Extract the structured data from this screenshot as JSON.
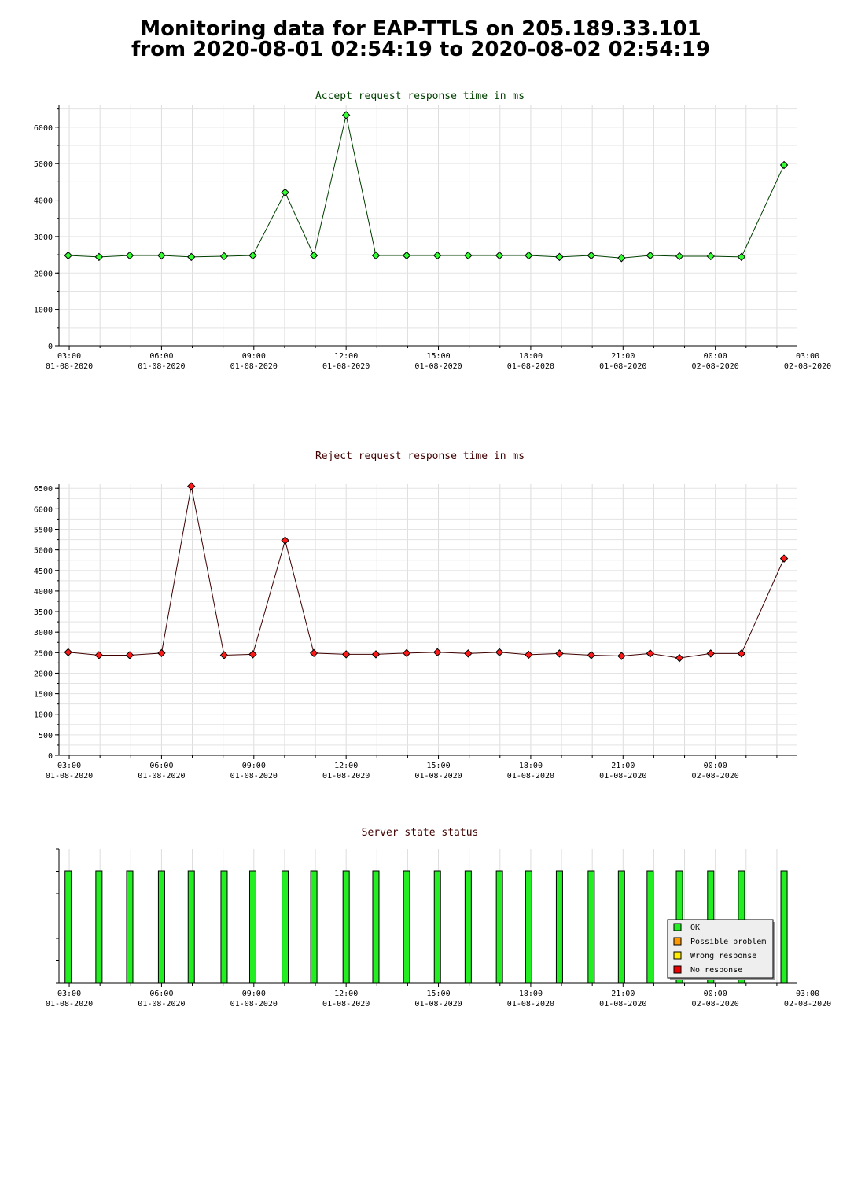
{
  "page_title": {
    "line1": "Monitoring data for EAP-TTLS on 205.189.33.101",
    "line2": "from 2020-08-01 02:54:19 to 2020-08-02 02:54:19"
  },
  "x_ticks": [
    {
      "time": "03:00",
      "date": "01-08-2020"
    },
    {
      "time": "06:00",
      "date": "01-08-2020"
    },
    {
      "time": "09:00",
      "date": "01-08-2020"
    },
    {
      "time": "12:00",
      "date": "01-08-2020"
    },
    {
      "time": "15:00",
      "date": "01-08-2020"
    },
    {
      "time": "18:00",
      "date": "01-08-2020"
    },
    {
      "time": "21:00",
      "date": "01-08-2020"
    },
    {
      "time": "00:00",
      "date": "02-08-2020"
    },
    {
      "time": "03:00",
      "date": "02-08-2020"
    }
  ],
  "chart_data": [
    {
      "type": "line",
      "title": "Accept request response time in ms",
      "xlim": [
        "2020-08-01 02:40",
        "2020-08-02 02:40"
      ],
      "ylim": [
        0,
        6600
      ],
      "y_ticks": [
        0,
        1000,
        2000,
        3000,
        4000,
        5000,
        6000
      ],
      "x": [
        "02:58",
        "03:58",
        "04:58",
        "06:00",
        "06:58",
        "08:02",
        "08:58",
        "10:01",
        "10:57",
        "12:00",
        "12:58",
        "13:58",
        "14:58",
        "15:58",
        "16:59",
        "17:56",
        "18:56",
        "19:58",
        "20:57",
        "21:53",
        "22:50",
        "23:51",
        "00:51",
        "02:14"
      ],
      "values": [
        2480,
        2440,
        2480,
        2480,
        2440,
        2460,
        2480,
        4210,
        2480,
        6330,
        2480,
        2480,
        2480,
        2480,
        2480,
        2480,
        2440,
        2480,
        2410,
        2480,
        2460,
        2460,
        2440,
        4960
      ],
      "line_color": "#004000",
      "marker_color": "#33ff33",
      "title_color": "#004000",
      "grid": true
    },
    {
      "type": "line",
      "title": "Reject request response time in ms",
      "xlim": [
        "2020-08-01 02:40",
        "2020-08-02 02:40"
      ],
      "ylim": [
        0,
        6600
      ],
      "y_ticks": [
        0,
        500,
        1000,
        1500,
        2000,
        2500,
        3000,
        3500,
        4000,
        4500,
        5000,
        5500,
        6000,
        6500
      ],
      "x": [
        "02:58",
        "03:58",
        "04:58",
        "06:00",
        "06:58",
        "08:02",
        "08:58",
        "10:01",
        "10:57",
        "12:00",
        "12:58",
        "13:58",
        "14:58",
        "15:58",
        "16:59",
        "17:56",
        "18:56",
        "19:58",
        "20:57",
        "21:53",
        "22:50",
        "23:51",
        "00:51",
        "02:14"
      ],
      "values": [
        2510,
        2440,
        2440,
        2490,
        6550,
        2440,
        2460,
        5230,
        2490,
        2460,
        2460,
        2490,
        2510,
        2480,
        2510,
        2450,
        2480,
        2440,
        2420,
        2480,
        2370,
        2480,
        2480,
        4790
      ],
      "line_color": "#400000",
      "marker_color": "#ff1a1a",
      "title_color": "#400000",
      "grid": true
    },
    {
      "type": "bar",
      "title": "Server state status",
      "xlim": [
        "2020-08-01 02:40",
        "2020-08-02 02:40"
      ],
      "x": [
        "02:58",
        "03:58",
        "04:58",
        "06:00",
        "06:58",
        "08:02",
        "08:58",
        "10:01",
        "10:57",
        "12:00",
        "12:58",
        "13:58",
        "14:58",
        "15:58",
        "16:59",
        "17:56",
        "18:56",
        "19:58",
        "20:57",
        "21:53",
        "22:50",
        "23:51",
        "00:51",
        "02:14"
      ],
      "states": [
        "OK",
        "OK",
        "OK",
        "OK",
        "OK",
        "OK",
        "OK",
        "OK",
        "OK",
        "OK",
        "OK",
        "OK",
        "OK",
        "OK",
        "OK",
        "OK",
        "OK",
        "OK",
        "OK",
        "OK",
        "OK",
        "OK",
        "OK",
        "OK"
      ],
      "title_color": "#400000",
      "legend_position": "bottom-right",
      "legend": [
        {
          "label": "OK",
          "color": "#22ee22"
        },
        {
          "label": "Possible problem",
          "color": "#ff9900"
        },
        {
          "label": "Wrong response",
          "color": "#ffee00"
        },
        {
          "label": "No response",
          "color": "#ee0000"
        }
      ]
    }
  ]
}
